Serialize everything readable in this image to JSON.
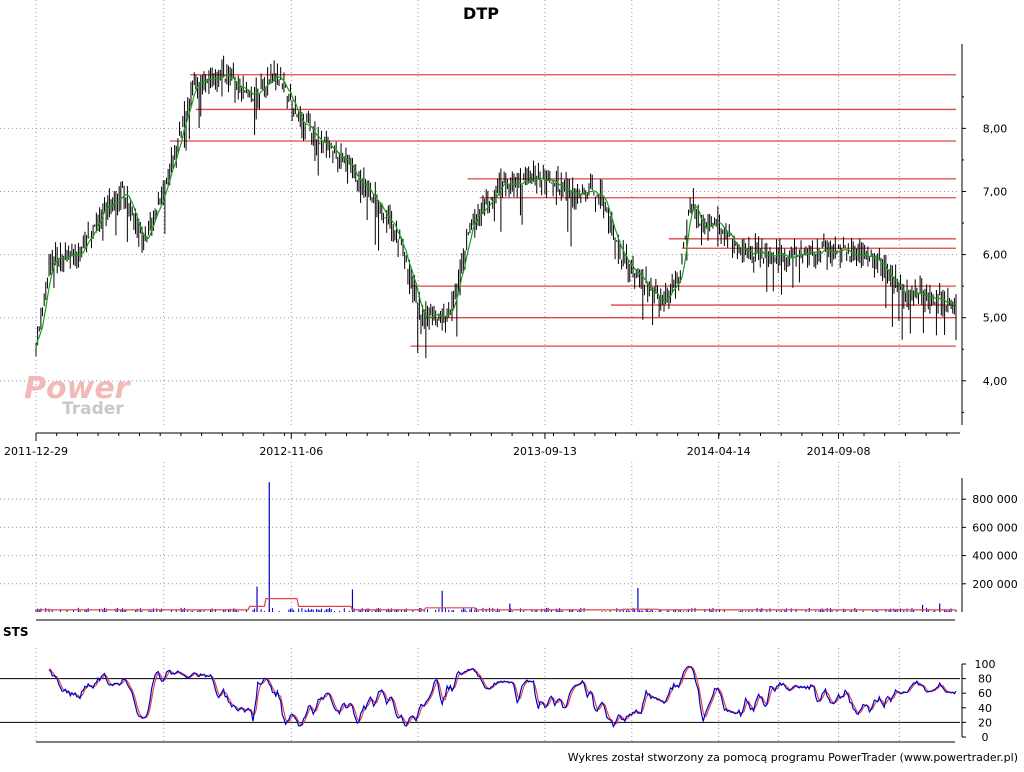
{
  "chart_data": [
    {
      "type": "candlestick",
      "title": "DTP",
      "x_tick_labels": [
        "2011-12-29",
        "2012-11-06",
        "2013-09-13",
        "2014-04-14",
        "2014-09-08"
      ],
      "ylim": [
        3.3,
        9.4
      ],
      "y_ticks": [
        4.0,
        5.0,
        6.0,
        7.0,
        8.0
      ],
      "y_tick_labels": [
        "4,00",
        "5,00",
        "6,00",
        "7,00",
        "8,00"
      ],
      "grid": true,
      "colors": {
        "bars": "#000000",
        "moving_average": "#1a9e1a",
        "support_resistance": "#e04545"
      },
      "support_resistance_levels": [
        {
          "level": 8.85,
          "from_date": "2012-07-05",
          "to_date": "2015-01-30"
        },
        {
          "level": 8.3,
          "from_date": "2012-07-12",
          "to_date": "2015-01-30"
        },
        {
          "level": 7.8,
          "from_date": "2012-06-10",
          "to_date": "2015-01-30"
        },
        {
          "level": 7.2,
          "from_date": "2013-06-10",
          "to_date": "2015-01-30"
        },
        {
          "level": 6.9,
          "from_date": "2013-06-25",
          "to_date": "2015-01-30"
        },
        {
          "level": 6.25,
          "from_date": "2014-02-12",
          "to_date": "2015-01-30"
        },
        {
          "level": 6.1,
          "from_date": "2014-02-28",
          "to_date": "2015-01-30"
        },
        {
          "level": 5.5,
          "from_date": "2013-04-02",
          "to_date": "2015-01-30"
        },
        {
          "level": 5.2,
          "from_date": "2013-12-03",
          "to_date": "2015-01-30"
        },
        {
          "level": 5.0,
          "from_date": "2013-04-20",
          "to_date": "2015-01-30"
        },
        {
          "level": 4.55,
          "from_date": "2013-04-01",
          "to_date": "2015-01-30"
        }
      ],
      "price_path": [
        {
          "date": "2011-12-29",
          "close": 4.55
        },
        {
          "date": "2012-01-15",
          "close": 5.9
        },
        {
          "date": "2012-02-20",
          "close": 6.0
        },
        {
          "date": "2012-03-20",
          "close": 6.7
        },
        {
          "date": "2012-04-15",
          "close": 7.0
        },
        {
          "date": "2012-05-10",
          "close": 6.2
        },
        {
          "date": "2012-06-10",
          "close": 7.3
        },
        {
          "date": "2012-07-10",
          "close": 8.7
        },
        {
          "date": "2012-08-15",
          "close": 8.85
        },
        {
          "date": "2012-09-20",
          "close": 8.5
        },
        {
          "date": "2012-10-20",
          "close": 8.85
        },
        {
          "date": "2012-11-20",
          "close": 8.1
        },
        {
          "date": "2013-01-10",
          "close": 7.5
        },
        {
          "date": "2013-02-15",
          "close": 6.9
        },
        {
          "date": "2013-03-20",
          "close": 6.2
        },
        {
          "date": "2013-04-15",
          "close": 5.0
        },
        {
          "date": "2013-05-20",
          "close": 5.1
        },
        {
          "date": "2013-06-15",
          "close": 6.5
        },
        {
          "date": "2013-07-20",
          "close": 7.1
        },
        {
          "date": "2013-09-13",
          "close": 7.2
        },
        {
          "date": "2013-10-20",
          "close": 6.95
        },
        {
          "date": "2013-11-20",
          "close": 7.0
        },
        {
          "date": "2013-12-15",
          "close": 6.0
        },
        {
          "date": "2014-01-15",
          "close": 5.5
        },
        {
          "date": "2014-02-05",
          "close": 5.25
        },
        {
          "date": "2014-02-25",
          "close": 5.6
        },
        {
          "date": "2014-03-10",
          "close": 6.9
        },
        {
          "date": "2014-03-25",
          "close": 6.4
        },
        {
          "date": "2014-04-14",
          "close": 6.5
        },
        {
          "date": "2014-05-10",
          "close": 6.05
        },
        {
          "date": "2014-06-15",
          "close": 6.0
        },
        {
          "date": "2014-07-15",
          "close": 6.0
        },
        {
          "date": "2014-08-10",
          "close": 6.05
        },
        {
          "date": "2014-09-08",
          "close": 6.05
        },
        {
          "date": "2014-10-01",
          "close": 6.0
        },
        {
          "date": "2014-10-25",
          "close": 5.95
        },
        {
          "date": "2014-11-25",
          "close": 5.4
        },
        {
          "date": "2014-12-20",
          "close": 5.35
        },
        {
          "date": "2015-01-30",
          "close": 5.2
        }
      ]
    },
    {
      "type": "bar",
      "ylim": [
        0,
        950000
      ],
      "y_ticks": [
        200000,
        400000,
        600000,
        800000
      ],
      "y_tick_labels": [
        "200 000",
        "400 000",
        "600 000",
        "800 000"
      ],
      "grid": true,
      "colors": {
        "volume": "#0000cc",
        "volume_average": "#e04545"
      },
      "volume_spikes": [
        {
          "date": "2012-09-25",
          "volume": 180000
        },
        {
          "date": "2012-10-10",
          "volume": 920000
        },
        {
          "date": "2013-01-20",
          "volume": 160000
        },
        {
          "date": "2013-05-10",
          "volume": 150000
        },
        {
          "date": "2013-08-01",
          "volume": 60000
        },
        {
          "date": "2014-01-05",
          "volume": 170000
        },
        {
          "date": "2014-12-20",
          "volume": 50000
        },
        {
          "date": "2015-01-10",
          "volume": 60000
        }
      ]
    },
    {
      "type": "line",
      "title": "STS",
      "ylim": [
        0,
        100
      ],
      "y_ticks": [
        0,
        20,
        40,
        60,
        80,
        100
      ],
      "y_tick_labels": [
        "0",
        "20",
        "40",
        "60",
        "80",
        "100"
      ],
      "reference_levels": [
        20,
        80
      ],
      "colors": {
        "fast": "#0000cc",
        "slow": "#e04545"
      }
    }
  ],
  "footer": "Wykres został stworzony za pomocą programu PowerTrader (www.powertrader.pl)",
  "watermark": {
    "power": "Power",
    "trader": "Trader"
  }
}
